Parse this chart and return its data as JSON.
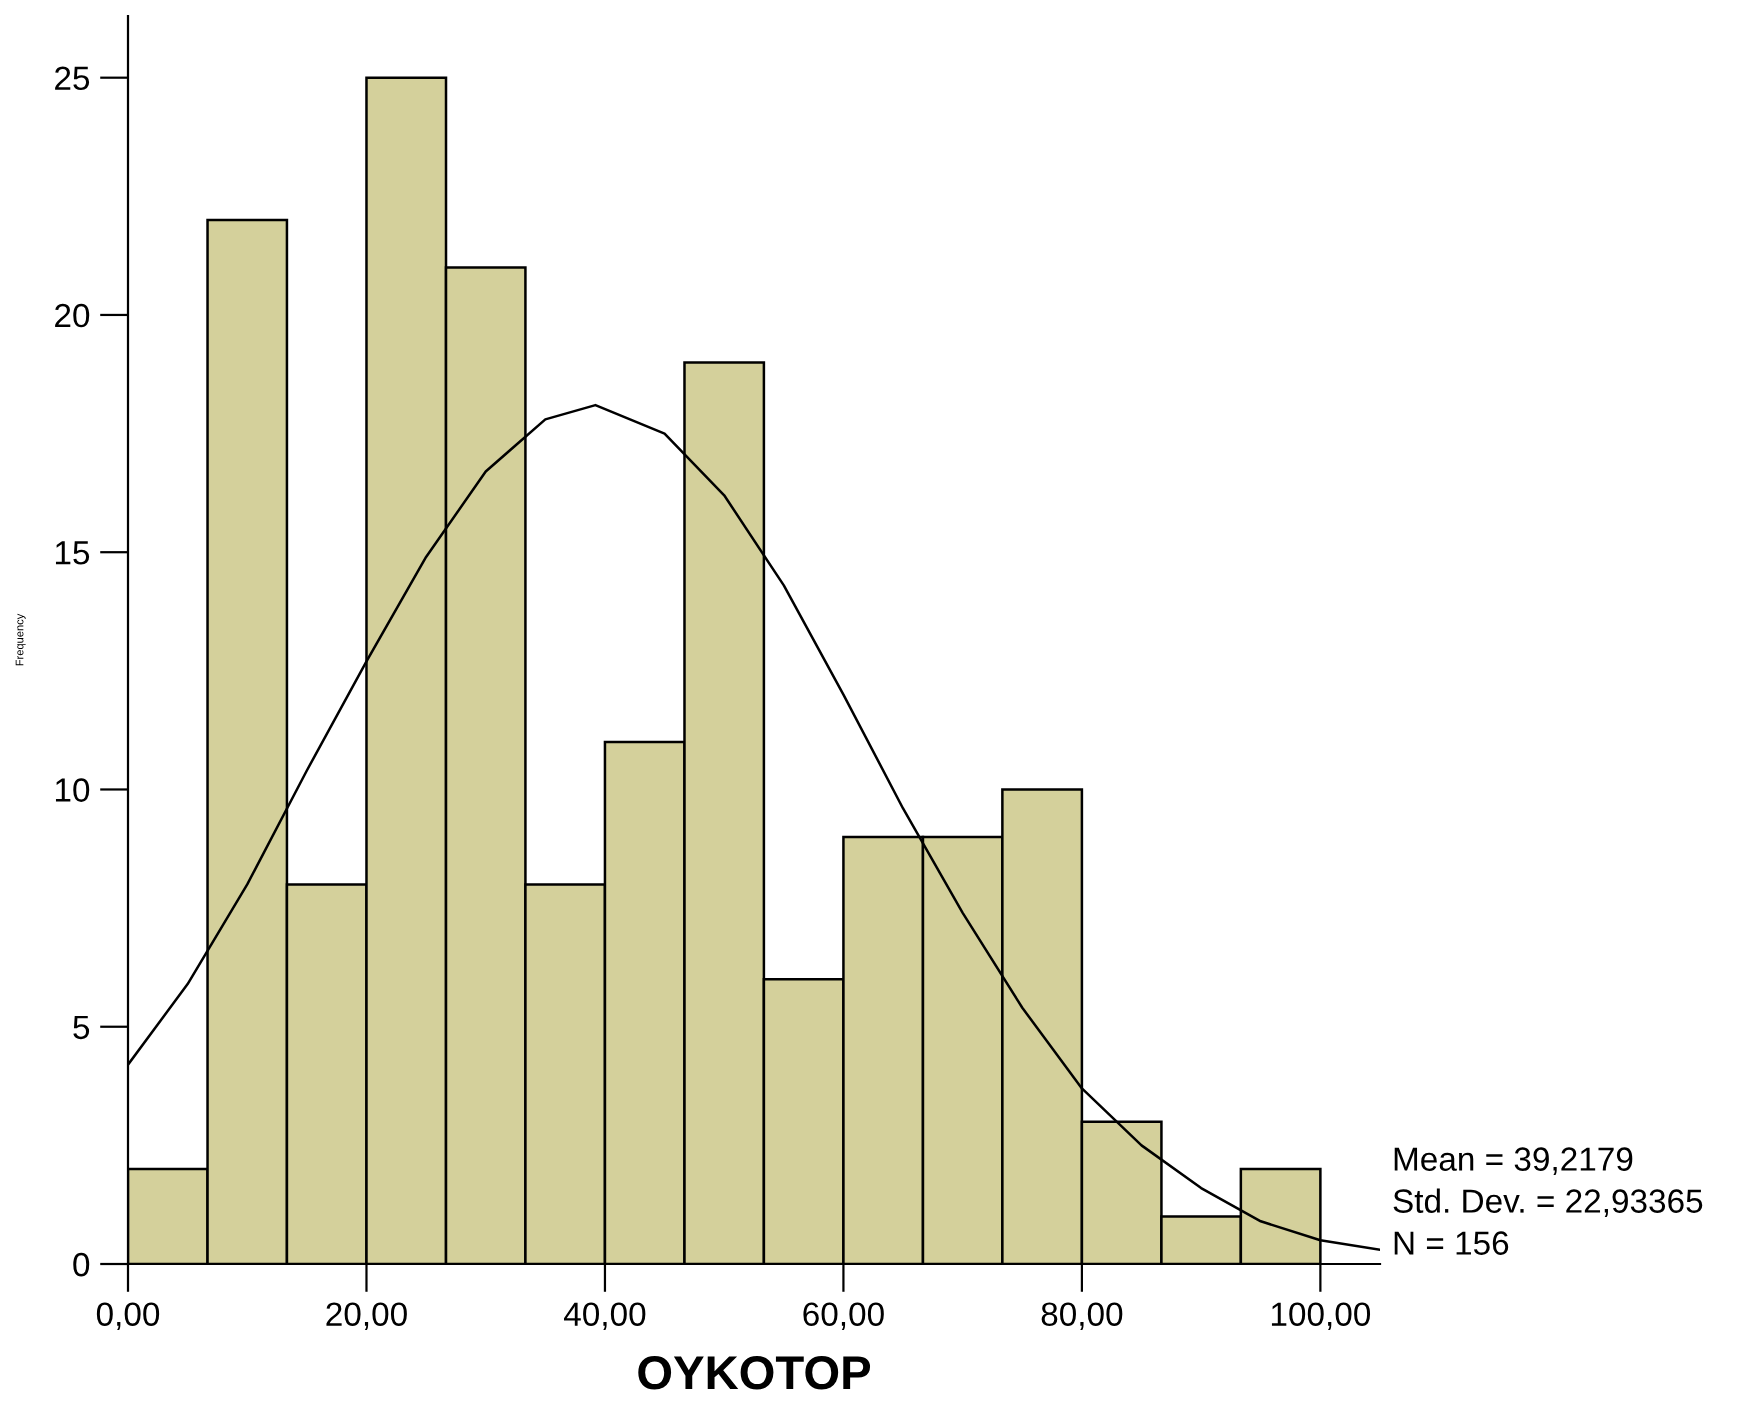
{
  "chart_data": {
    "type": "histogram",
    "xlabel": "OYKOTOP",
    "ylabel": "Frequency",
    "bins": [
      0,
      6.67,
      13.33,
      20,
      26.67,
      33.33,
      40,
      46.67,
      53.33,
      60,
      66.67,
      73.33,
      80,
      86.67,
      93.33,
      100
    ],
    "values": [
      2,
      22,
      8,
      25,
      21,
      8,
      11,
      19,
      6,
      9,
      9,
      10,
      3,
      1,
      2
    ],
    "color": "#d4d09b",
    "series": [
      {
        "type": "line",
        "color": "#000000",
        "x": [
          0,
          5,
          10,
          15,
          20,
          25,
          30,
          35,
          39.2,
          45,
          50,
          55,
          60,
          65,
          70,
          75,
          80,
          85,
          90,
          95,
          100,
          105
        ],
        "values": [
          4.2,
          5.9,
          8.0,
          10.4,
          12.7,
          14.9,
          16.7,
          17.8,
          18.1,
          17.5,
          16.2,
          14.3,
          12.0,
          9.6,
          7.4,
          5.4,
          3.7,
          2.5,
          1.6,
          0.9,
          0.5,
          0.3
        ]
      }
    ],
    "xlim": [
      0,
      105
    ],
    "ylim": [
      0,
      26.3
    ],
    "xticks": [
      {
        "value": 0,
        "label": "0,00"
      },
      {
        "value": 20,
        "label": "20,00"
      },
      {
        "value": 40,
        "label": "40,00"
      },
      {
        "value": 60,
        "label": "60,00"
      },
      {
        "value": 80,
        "label": "80,00"
      },
      {
        "value": 100,
        "label": "100,00"
      }
    ],
    "yticks": [
      0,
      5,
      10,
      15,
      20,
      25
    ],
    "grid": false,
    "legend": false,
    "annotations": [
      "Mean = 39,2179",
      "Std. Dev. = 22,93365",
      "N = 156"
    ]
  }
}
